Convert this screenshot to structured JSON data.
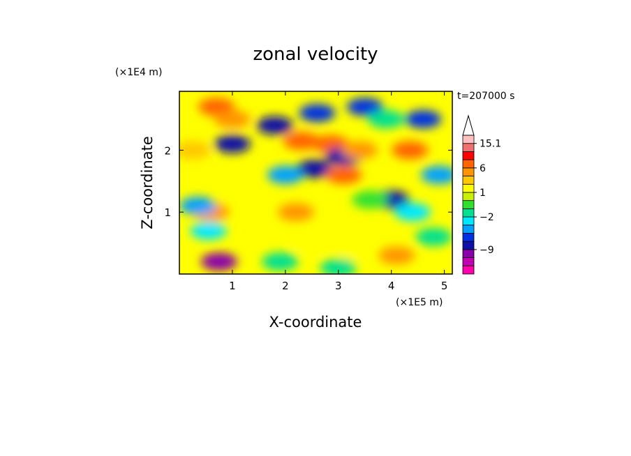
{
  "chart_data": {
    "type": "heatmap",
    "title": "zonal velocity",
    "xlabel": "X-coordinate",
    "ylabel": "Z-coordinate",
    "x_scale_label": "(×1E5 m)",
    "y_scale_label": "(×1E4 m)",
    "time_label": "t=207000 s",
    "xlim": [
      0,
      5.15
    ],
    "ylim": [
      0,
      2.95
    ],
    "x_ticks": [
      "1",
      "2",
      "3",
      "4",
      "5"
    ],
    "y_ticks": [
      "1",
      "2"
    ],
    "grid": false,
    "colorbar": {
      "placement": "right",
      "labels": [
        "15.1",
        "6",
        "1",
        "−2",
        "−9"
      ],
      "levels": [
        -14,
        -12,
        -9,
        -7,
        -5,
        -3,
        -2,
        -1,
        0,
        1,
        2,
        3,
        6,
        9,
        12,
        15.1
      ],
      "colors": [
        "#ff00aa",
        "#c000b0",
        "#8a00a8",
        "#1010a8",
        "#0030e0",
        "#00a0ff",
        "#00e8ff",
        "#00e090",
        "#30e030",
        "#c8f000",
        "#ffff00",
        "#ffc800",
        "#ff9600",
        "#ff6400",
        "#ff0000",
        "#f07070",
        "#ffc0c0"
      ]
    },
    "features": [
      {
        "x": 0.7,
        "z": 2.7,
        "value": 6
      },
      {
        "x": 1.0,
        "z": 2.5,
        "value": 4
      },
      {
        "x": 1.0,
        "z": 2.1,
        "value": -9
      },
      {
        "x": 0.6,
        "z": 1.0,
        "value": 4
      },
      {
        "x": 0.35,
        "z": 1.1,
        "value": -5
      },
      {
        "x": 0.55,
        "z": 0.7,
        "value": -3
      },
      {
        "x": 0.75,
        "z": 0.2,
        "value": -12
      },
      {
        "x": 1.8,
        "z": 2.4,
        "value": -9
      },
      {
        "x": 2.6,
        "z": 2.6,
        "value": -7
      },
      {
        "x": 2.3,
        "z": 2.15,
        "value": 6
      },
      {
        "x": 2.85,
        "z": 2.1,
        "value": 6
      },
      {
        "x": 3.1,
        "z": 1.9,
        "value": -9
      },
      {
        "x": 3.4,
        "z": 2.0,
        "value": 5
      },
      {
        "x": 3.5,
        "z": 2.7,
        "value": -7
      },
      {
        "x": 2.55,
        "z": 1.7,
        "value": -9
      },
      {
        "x": 3.1,
        "z": 1.6,
        "value": 6
      },
      {
        "x": 2.0,
        "z": 1.6,
        "value": -5
      },
      {
        "x": 4.0,
        "z": 1.2,
        "value": -9
      },
      {
        "x": 4.4,
        "z": 1.0,
        "value": -3
      },
      {
        "x": 4.8,
        "z": 0.6,
        "value": -2
      },
      {
        "x": 4.35,
        "z": 2.0,
        "value": 6
      },
      {
        "x": 4.9,
        "z": 1.6,
        "value": -5
      },
      {
        "x": 4.6,
        "z": 2.5,
        "value": -7
      },
      {
        "x": 3.9,
        "z": 2.5,
        "value": -2
      },
      {
        "x": 2.5,
        "z": 0.5,
        "value": 1
      },
      {
        "x": 3.3,
        "z": 0.4,
        "value": 1
      },
      {
        "x": 2.2,
        "z": 1.0,
        "value": 4
      },
      {
        "x": 4.1,
        "z": 0.3,
        "value": 4
      },
      {
        "x": 1.9,
        "z": 0.2,
        "value": -2
      },
      {
        "x": 3.0,
        "z": 0.1,
        "value": -2
      },
      {
        "x": 3.6,
        "z": 1.2,
        "value": -1
      },
      {
        "x": 0.25,
        "z": 2.0,
        "value": 2
      }
    ]
  }
}
